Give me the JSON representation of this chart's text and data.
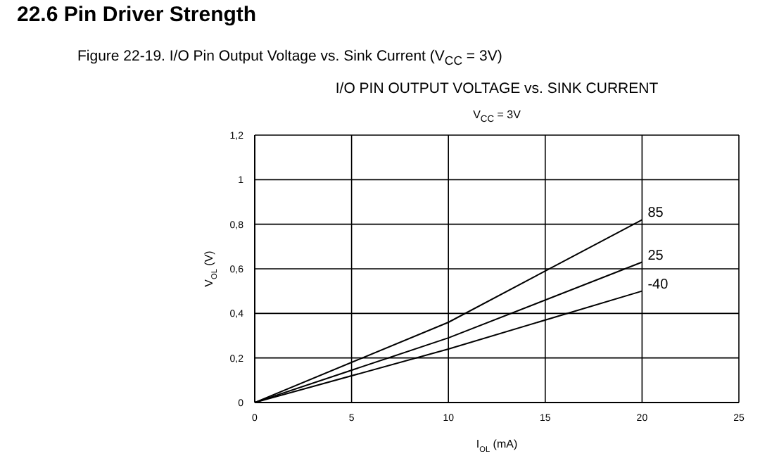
{
  "chart_data": {
    "type": "line",
    "title": "22.6 Pin Driver Strength",
    "subtitle": "Figure 22-19. I/O Pin Output Voltage vs. Sink Current (V$_{CC}$ = 3V)",
    "annotations": [
      "I/O PIN OUTPUT VOLTAGE vs. SINK CURRENT",
      "V$_{CC}$ = 3V"
    ],
    "xlabel": "I$_{OL}$ (mA)",
    "ylabel": "V$_{OL}$ (V)",
    "x": [
      0,
      10,
      20
    ],
    "series": [
      {
        "name": "85",
        "color": "#000000",
        "values": [
          0,
          0.36,
          0.82
        ]
      },
      {
        "name": "25",
        "color": "#000000",
        "values": [
          0,
          0.29,
          0.63
        ]
      },
      {
        "name": "-40",
        "color": "#000000",
        "values": [
          0,
          0.24,
          0.5
        ]
      }
    ],
    "xlim": [
      0,
      25
    ],
    "xticks": [
      0,
      5,
      10,
      15,
      20,
      25
    ],
    "ylim": [
      0,
      1.2
    ],
    "yticks": [
      0,
      {
        "value": 0.2,
        "label": "0,2"
      },
      {
        "value": 0.4,
        "label": "0,4"
      },
      {
        "value": 0.6,
        "label": "0,6"
      },
      {
        "value": 0.8,
        "label": "0,8"
      },
      1,
      {
        "value": 1.2,
        "label": "1,2"
      }
    ],
    "grid": true,
    "legend": false,
    "marker": "none",
    "line_style": "solid"
  }
}
